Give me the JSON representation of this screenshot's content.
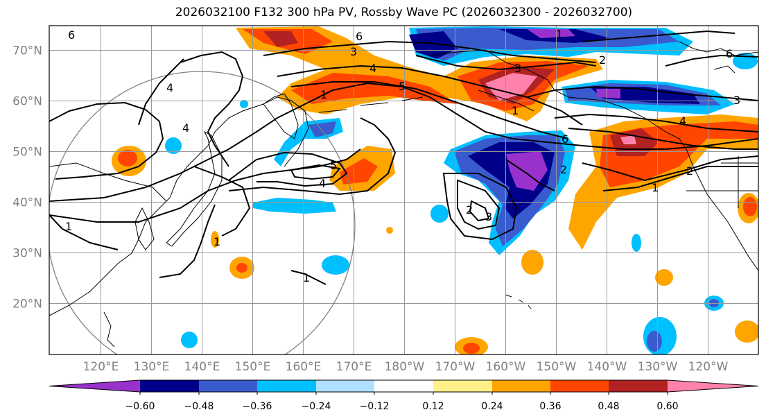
{
  "title": "2026032100 F132 300 hPa PV, Rossby Wave PC (2026032300 - 2026032700)",
  "map": {
    "lat_labels": [
      "70°N",
      "60°N",
      "50°N",
      "40°N",
      "30°N",
      "20°N"
    ],
    "lon_labels": [
      "120°E",
      "130°E",
      "140°E",
      "150°E",
      "160°E",
      "170°E",
      "180°W",
      "170°W",
      "160°W",
      "150°W",
      "140°W",
      "130°W",
      "120°W"
    ],
    "contour_labels": [
      "6",
      "6",
      "4",
      "4",
      "4",
      "5",
      "4",
      "5",
      "3",
      "1",
      "1",
      "2",
      "3",
      "6",
      "2",
      "1",
      "3",
      "1",
      "2",
      "1",
      "4",
      "3",
      "2",
      "1",
      "1",
      "6"
    ],
    "colors": {
      "neg": [
        "#9932cc",
        "#00008b",
        "#3a5bcd",
        "#00bfff",
        "#b0e0ff"
      ],
      "pos": [
        "#fff08a",
        "#ffa500",
        "#ff4500",
        "#b22222",
        "#ff82ab"
      ],
      "grid": "#999999",
      "coast": "#000000"
    }
  },
  "colorbar": {
    "labels": [
      "−0.60",
      "−0.48",
      "−0.36",
      "−0.24",
      "−0.12",
      "0.12",
      "0.24",
      "0.36",
      "0.48",
      "0.60"
    ],
    "colors": [
      "#9932cc",
      "#00008b",
      "#3a5bcd",
      "#00bfff",
      "#b0e0ff",
      "#ffffff",
      "#fff08a",
      "#ffa500",
      "#ff4500",
      "#b22222",
      "#ff82ab"
    ]
  }
}
